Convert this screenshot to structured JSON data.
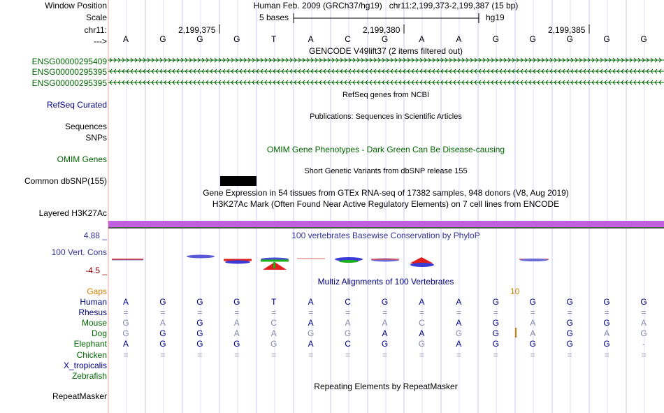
{
  "colors": {
    "green": "#006400",
    "navy": "#000080",
    "purple": "#333399",
    "maroon": "#8b0000",
    "orange": "#d08000",
    "grid": "#c8c8f0",
    "h3k27ac": "#c060e0"
  },
  "header": {
    "window_position_label": "Window Position",
    "position_title": "Human Feb. 2009 (GRCh37/hg19)   chr11:2,199,373-2,199,387 (15 bp)",
    "scale_label": "Scale",
    "scale_text": "5 bases",
    "assembly": "hg19",
    "chrom_label": "chr11:",
    "arrow_label": "--->",
    "coords": [
      "2,199,375",
      "2,199,380",
      "2,199,385"
    ]
  },
  "reference_bases": [
    "A",
    "G",
    "G",
    "G",
    "T",
    "A",
    "C",
    "G",
    "A",
    "A",
    "G",
    "G",
    "G",
    "G",
    "G"
  ],
  "tracks": {
    "gencode_title": "GENCODE V49lift37 (2 items filtered out)",
    "gencode_items": [
      "ENSG00000295409",
      "ENSG00000295395",
      "ENSG00000295395"
    ],
    "refseq_title": "RefSeq genes from NCBI",
    "refseq_label": "RefSeq Curated",
    "publications_title": "Publications: Sequences in Scientific Articles",
    "sequences_label": "Sequences",
    "snps_label": "SNPs",
    "omim_title": "OMIM Gene Phenotypes - Dark Green Can Be Disease-causing",
    "omim_label": "OMIM Genes",
    "dbsnp_title": "Short Genetic Variants from dbSNP release 155",
    "dbsnp_label": "Common dbSNP(155)",
    "gtex_title": "Gene Expression in 54 tissues from GTEx RNA-seq of 17382 samples, 948 donors (V8, Aug 2019)",
    "h3k27ac_title": "H3K27Ac Mark (Often Found Near Active Regulatory Elements) on 7 cell lines from ENCODE",
    "h3k27ac_label": "Layered H3K27Ac",
    "phylop_title": "100 vertebrates Basewise Conservation by PhyloP",
    "phylop_max": "4.88 _",
    "phylop_min": "-4.5 _",
    "phylop_label": "100 Vert. Cons",
    "multiz_title": "Multiz Alignments of 100 Vertebrates",
    "gaps_label": "Gaps",
    "gaps_value": "10",
    "repeat_title": "Repeating Elements by RepeatMasker",
    "repeat_label": "RepeatMasker"
  },
  "alignment": [
    {
      "species": "Human",
      "bases": [
        "A",
        "G",
        "G",
        "G",
        "T",
        "A",
        "C",
        "G",
        "A",
        "A",
        "G",
        "G",
        "G",
        "G",
        "G"
      ],
      "dim": [
        0,
        0,
        0,
        0,
        0,
        0,
        0,
        0,
        0,
        0,
        0,
        0,
        0,
        0,
        0
      ]
    },
    {
      "species": "Rhesus",
      "bases": [
        "=",
        "=",
        "=",
        "=",
        "=",
        "=",
        "=",
        "=",
        "=",
        "=",
        "=",
        "=",
        "=",
        "=",
        "="
      ],
      "dim": [
        1,
        1,
        1,
        1,
        1,
        1,
        1,
        1,
        1,
        1,
        1,
        1,
        1,
        1,
        1
      ]
    },
    {
      "species": "Mouse",
      "bases": [
        "G",
        "A",
        "G",
        "A",
        "C",
        "A",
        "A",
        "A",
        "C",
        "A",
        "G",
        "A",
        "G",
        "G",
        "A"
      ],
      "dim": [
        1,
        1,
        0,
        1,
        1,
        0,
        1,
        1,
        1,
        0,
        0,
        1,
        0,
        0,
        1
      ]
    },
    {
      "species": "Dog",
      "bases": [
        "G",
        "G",
        "G",
        "A",
        "A",
        "G",
        "G",
        "A",
        "A",
        "G",
        "G",
        "A",
        "G",
        "A",
        "G"
      ],
      "dim": [
        1,
        0,
        0,
        1,
        1,
        1,
        1,
        0,
        0,
        1,
        0,
        1,
        0,
        1,
        1
      ]
    },
    {
      "species": "Elephant",
      "bases": [
        "A",
        "G",
        "G",
        "G",
        "G",
        "A",
        "C",
        "G",
        "G",
        "A",
        "G",
        "G",
        "G",
        "G",
        "-"
      ],
      "dim": [
        0,
        0,
        0,
        0,
        1,
        0,
        0,
        0,
        1,
        0,
        0,
        0,
        0,
        0,
        1
      ]
    },
    {
      "species": "Chicken",
      "bases": [
        "=",
        "=",
        "=",
        "=",
        "=",
        "=",
        "=",
        "=",
        "=",
        "=",
        "=",
        "=",
        "=",
        "=",
        "="
      ],
      "dim": [
        1,
        1,
        1,
        1,
        1,
        1,
        1,
        1,
        1,
        1,
        1,
        1,
        1,
        1,
        1
      ]
    },
    {
      "species": "X_tropicalis",
      "bases": [],
      "dim": []
    },
    {
      "species": "Zebrafish",
      "bases": [],
      "dim": []
    }
  ]
}
